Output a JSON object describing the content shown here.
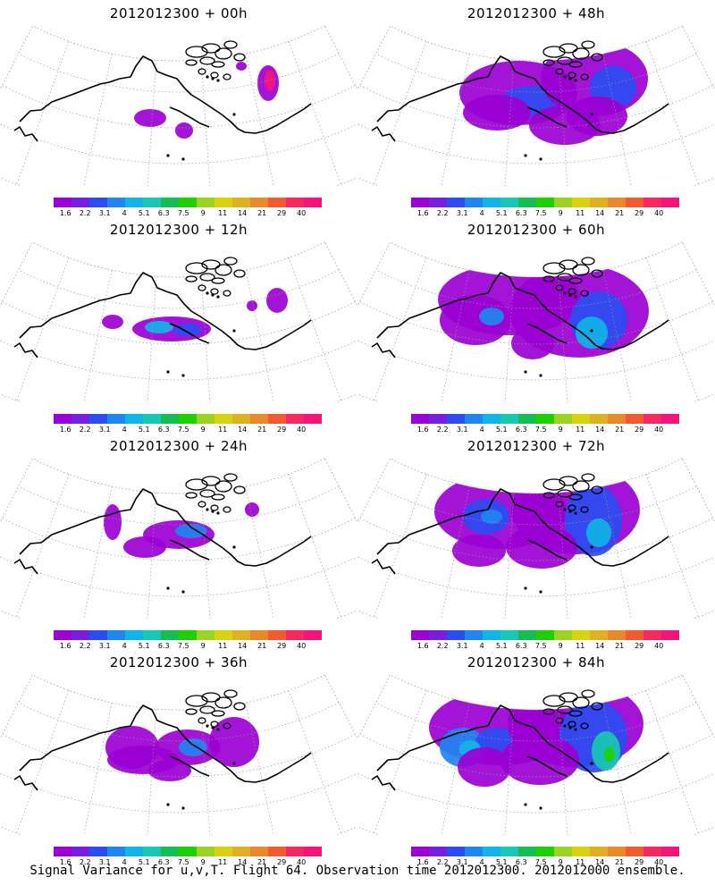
{
  "panels": [
    {
      "title": "2012012300 + 00h",
      "lead": "00h"
    },
    {
      "title": "2012012300 + 48h",
      "lead": "48h"
    },
    {
      "title": "2012012300 + 12h",
      "lead": "12h"
    },
    {
      "title": "2012012300 + 60h",
      "lead": "60h"
    },
    {
      "title": "2012012300 + 24h",
      "lead": "24h"
    },
    {
      "title": "2012012300 + 72h",
      "lead": "72h"
    },
    {
      "title": "2012012300 + 36h",
      "lead": "36h"
    },
    {
      "title": "2012012300 + 84h",
      "lead": "84h"
    }
  ],
  "colorbar": {
    "ticks": [
      "1.6",
      "2.2",
      "3.1",
      "4",
      "5.1",
      "6.3",
      "7.5",
      "9",
      "11",
      "14",
      "21",
      "29",
      "40"
    ],
    "colors": [
      "#9b00d4",
      "#7a1de0",
      "#2b4cf0",
      "#1f86f0",
      "#10b4e6",
      "#17c9b4",
      "#13bf55",
      "#1fd000",
      "#9ad420",
      "#d9d30e",
      "#e0b020",
      "#e88a2a",
      "#f25a2f",
      "#f5285f",
      "#f5157a"
    ]
  },
  "caption": "Signal Variance for u,v,T. Flight 64. Observation time 2012012300. 2012012000 ensemble.",
  "colors": {
    "coast": "#000000",
    "grid": "#9a9a9a",
    "variance_low": "#9b00d4",
    "variance_mid": "#2b4cf0",
    "variance_high": "#13bf55"
  }
}
